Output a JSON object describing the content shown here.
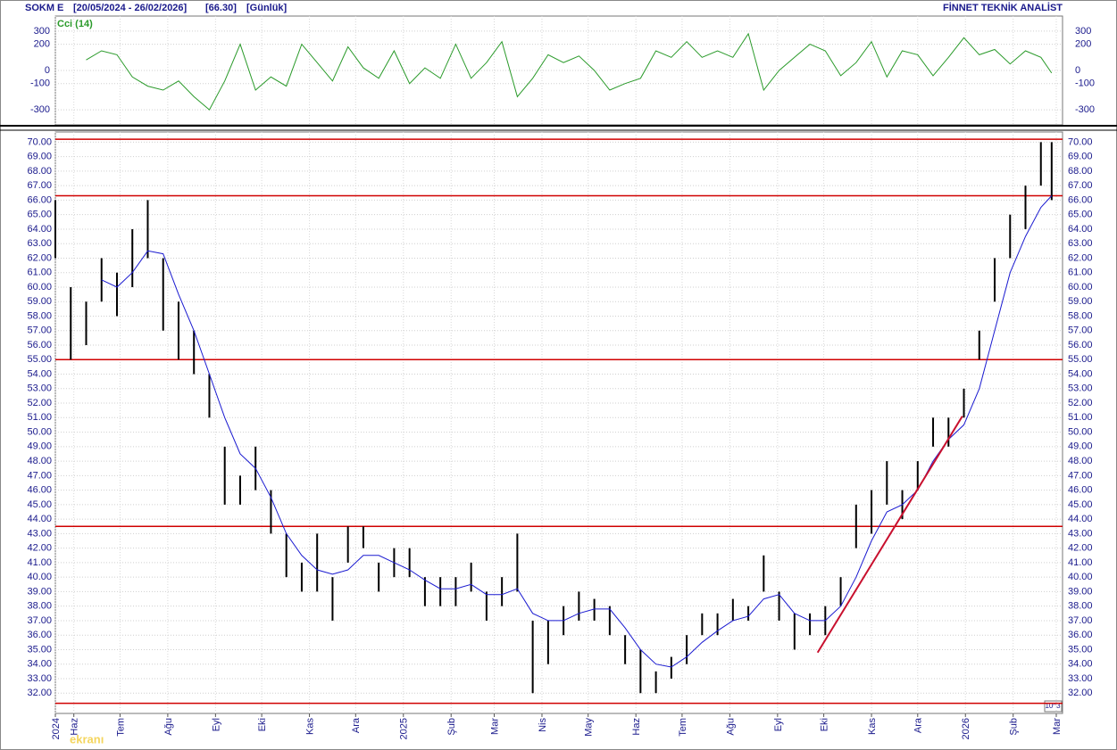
{
  "chart_data": {
    "type": "range-bar",
    "symbol": "SOKM  E",
    "range": "[20/05/2024 - 26/02/2026]",
    "last": "[66.30]",
    "period": "[Günlük]",
    "brand": "FİNNET TEKNİK ANALİST",
    "unit_label": "10^3",
    "logo": "ekranı",
    "bar_color": "#000000",
    "ma_color": "#1a1ad0",
    "level_color": "#d00000",
    "grid": true,
    "x": [
      "2024-05-20",
      "2024-05-30",
      "2024-06-09",
      "2024-06-19",
      "2024-06-29",
      "2024-07-09",
      "2024-07-19",
      "2024-07-29",
      "2024-08-08",
      "2024-08-18",
      "2024-08-28",
      "2024-09-07",
      "2024-09-17",
      "2024-09-27",
      "2024-10-07",
      "2024-10-17",
      "2024-10-27",
      "2024-11-06",
      "2024-11-16",
      "2024-11-26",
      "2024-12-06",
      "2024-12-16",
      "2024-12-26",
      "2025-01-05",
      "2025-01-15",
      "2025-01-25",
      "2025-02-04",
      "2025-02-14",
      "2025-02-24",
      "2025-03-06",
      "2025-03-16",
      "2025-03-26",
      "2025-04-05",
      "2025-04-15",
      "2025-04-25",
      "2025-05-05",
      "2025-05-15",
      "2025-05-25",
      "2025-06-04",
      "2025-06-14",
      "2025-06-24",
      "2025-07-04",
      "2025-07-14",
      "2025-07-24",
      "2025-08-03",
      "2025-08-13",
      "2025-08-23",
      "2025-09-02",
      "2025-09-12",
      "2025-09-22",
      "2025-10-02",
      "2025-10-12",
      "2025-10-22",
      "2025-11-01",
      "2025-11-11",
      "2025-11-21",
      "2025-12-01",
      "2025-12-11",
      "2025-12-21",
      "2025-12-31",
      "2026-01-10",
      "2026-01-20",
      "2026-01-30",
      "2026-02-09",
      "2026-02-19",
      "2026-02-26"
    ],
    "low": [
      62,
      55,
      56,
      59,
      58,
      60,
      62,
      57,
      55,
      54,
      51,
      45,
      45,
      46,
      43,
      40,
      39,
      39,
      37,
      41,
      42,
      39,
      40,
      40,
      38,
      38,
      38,
      39,
      37,
      38,
      39,
      32,
      34,
      36,
      37,
      37,
      36,
      34,
      32,
      32,
      33,
      34,
      36,
      36,
      37,
      37,
      39,
      37,
      35,
      36,
      36,
      38,
      42,
      43,
      45,
      44,
      46,
      49,
      49,
      51,
      55,
      59,
      62,
      64,
      67,
      66
    ],
    "high": [
      66,
      60,
      59,
      62,
      61,
      64,
      66,
      62,
      59,
      57,
      54,
      49,
      47,
      49,
      46,
      43,
      41,
      43,
      40,
      43.5,
      43.5,
      41,
      42,
      42,
      40,
      40,
      40,
      41,
      39,
      40,
      43,
      37,
      37,
      38,
      39,
      38.5,
      38,
      36,
      35,
      33.5,
      34.5,
      36,
      37.5,
      37.5,
      38.5,
      38,
      41.5,
      39,
      37.5,
      37.5,
      38,
      40,
      45,
      46,
      48,
      46,
      48,
      51,
      51,
      53,
      57,
      62,
      65,
      67,
      70,
      70
    ],
    "ma": [
      null,
      null,
      null,
      60.5,
      60,
      61,
      62.5,
      62.3,
      59.5,
      57,
      54,
      51,
      48.5,
      47.5,
      45.5,
      43,
      41.5,
      40.5,
      40.2,
      40.5,
      41.5,
      41.5,
      41,
      40.5,
      39.8,
      39.2,
      39.2,
      39.5,
      38.8,
      38.8,
      39.2,
      37.5,
      37,
      37,
      37.5,
      37.8,
      37.8,
      36.5,
      35,
      34,
      33.8,
      34.5,
      35.5,
      36.3,
      37,
      37.3,
      38.5,
      38.8,
      37.5,
      37,
      37,
      38,
      40,
      42.5,
      44.5,
      45,
      46,
      48,
      49.5,
      50.5,
      53,
      57,
      61,
      63.5,
      65.5,
      66.3
    ],
    "xlim": [
      "2024-05-20",
      "2026-03-01"
    ],
    "xticks": [
      {
        "value": "2024-05-20",
        "label": "2024"
      },
      {
        "value": "2024-06-01",
        "label": "Haz"
      },
      {
        "value": "2024-07-01",
        "label": "Tem"
      },
      {
        "value": "2024-08-01",
        "label": "Ağu"
      },
      {
        "value": "2024-09-01",
        "label": "Eyl"
      },
      {
        "value": "2024-10-01",
        "label": "Eki"
      },
      {
        "value": "2024-11-01",
        "label": "Kas"
      },
      {
        "value": "2024-12-01",
        "label": "Ara"
      },
      {
        "value": "2025-01-01",
        "label": "2025"
      },
      {
        "value": "2025-02-01",
        "label": "Şub"
      },
      {
        "value": "2025-03-01",
        "label": "Mar"
      },
      {
        "value": "2025-04-01",
        "label": "Nis"
      },
      {
        "value": "2025-05-01",
        "label": "May"
      },
      {
        "value": "2025-06-01",
        "label": "Haz"
      },
      {
        "value": "2025-07-01",
        "label": "Tem"
      },
      {
        "value": "2025-08-01",
        "label": "Ağu"
      },
      {
        "value": "2025-09-01",
        "label": "Eyl"
      },
      {
        "value": "2025-10-01",
        "label": "Eki"
      },
      {
        "value": "2025-11-01",
        "label": "Kas"
      },
      {
        "value": "2025-12-01",
        "label": "Ara"
      },
      {
        "value": "2026-01-01",
        "label": "2026"
      },
      {
        "value": "2026-02-01",
        "label": "Şub"
      },
      {
        "value": "2026-03-01",
        "label": "Mar"
      }
    ],
    "ylim": [
      30.6,
      70.7
    ],
    "yticks": [
      {
        "value": 32,
        "label": "32.00"
      },
      {
        "value": 33,
        "label": "33.00"
      },
      {
        "value": 34,
        "label": "34.00"
      },
      {
        "value": 35,
        "label": "35.00"
      },
      {
        "value": 36,
        "label": "36.00"
      },
      {
        "value": 37,
        "label": "37.00"
      },
      {
        "value": 38,
        "label": "38.00"
      },
      {
        "value": 39,
        "label": "39.00"
      },
      {
        "value": 40,
        "label": "40.00"
      },
      {
        "value": 41,
        "label": "41.00"
      },
      {
        "value": 42,
        "label": "42.00"
      },
      {
        "value": 43,
        "label": "43.00"
      },
      {
        "value": 44,
        "label": "44.00"
      },
      {
        "value": 45,
        "label": "45.00"
      },
      {
        "value": 46,
        "label": "46.00"
      },
      {
        "value": 47,
        "label": "47.00"
      },
      {
        "value": 48,
        "label": "48.00"
      },
      {
        "value": 49,
        "label": "49.00"
      },
      {
        "value": 50,
        "label": "50.00"
      },
      {
        "value": 51,
        "label": "51.00"
      },
      {
        "value": 52,
        "label": "52.00"
      },
      {
        "value": 53,
        "label": "53.00"
      },
      {
        "value": 54,
        "label": "54.00"
      },
      {
        "value": 55,
        "label": "55.00"
      },
      {
        "value": 56,
        "label": "56.00"
      },
      {
        "value": 57,
        "label": "57.00"
      },
      {
        "value": 58,
        "label": "58.00"
      },
      {
        "value": 59,
        "label": "59.00"
      },
      {
        "value": 60,
        "label": "60.00"
      },
      {
        "value": 61,
        "label": "61.00"
      },
      {
        "value": 62,
        "label": "62.00"
      },
      {
        "value": 63,
        "label": "63.00"
      },
      {
        "value": 64,
        "label": "64.00"
      },
      {
        "value": 65,
        "label": "65.00"
      },
      {
        "value": 66,
        "label": "66.00"
      },
      {
        "value": 67,
        "label": "67.00"
      },
      {
        "value": 68,
        "label": "68.00"
      },
      {
        "value": 69,
        "label": "69.00"
      },
      {
        "value": 70,
        "label": "70.00"
      }
    ],
    "levels": [
      70.2,
      66.3,
      55,
      43.5,
      31.3
    ],
    "trendline": {
      "x": [
        "2025-09-27",
        "2025-12-30"
      ],
      "y": [
        34.8,
        51.1
      ],
      "color": "#c8102e"
    },
    "indicator": {
      "type": "line",
      "label": "Cci (14)",
      "color": "#2a9a2a",
      "values": [
        null,
        null,
        80,
        150,
        120,
        -50,
        -120,
        -150,
        -80,
        -200,
        -300,
        -80,
        200,
        -150,
        -50,
        -120,
        200,
        60,
        -80,
        180,
        20,
        -60,
        150,
        -100,
        20,
        -60,
        200,
        -60,
        60,
        220,
        -200,
        -60,
        120,
        60,
        110,
        0,
        -150,
        -100,
        -60,
        150,
        100,
        220,
        100,
        150,
        100,
        280,
        -150,
        0,
        100,
        200,
        150,
        -40,
        60,
        220,
        -50,
        150,
        120,
        -40,
        100,
        250,
        120,
        160,
        50,
        150,
        100,
        -20
      ],
      "ylim": [
        -415,
        415
      ],
      "yticks": [
        300,
        200,
        0,
        -100,
        -300
      ]
    }
  }
}
